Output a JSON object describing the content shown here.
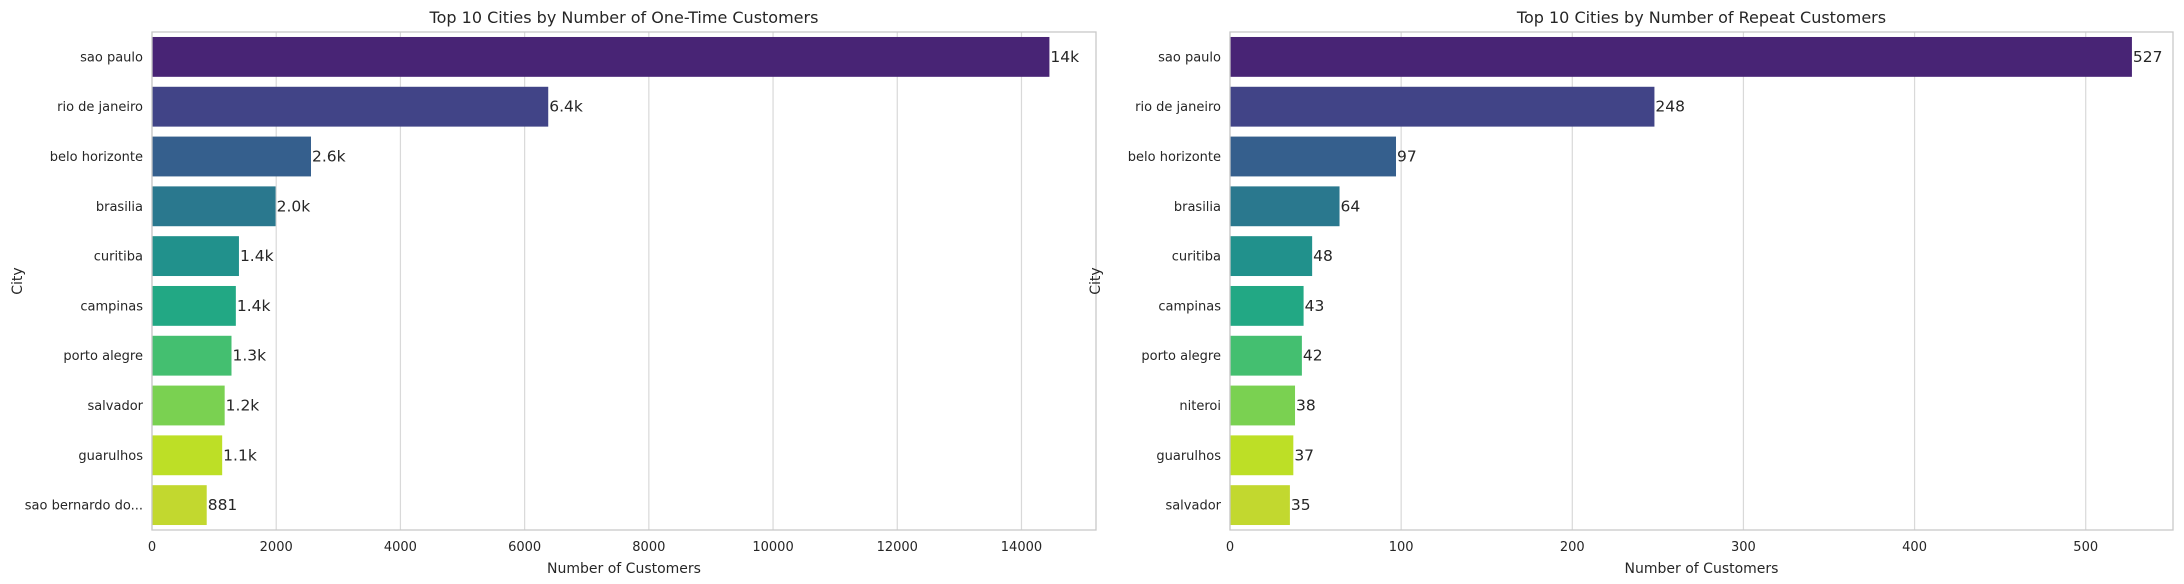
{
  "chart_data": [
    {
      "type": "bar",
      "orientation": "horizontal",
      "title": "Top 10 Cities by Number of One-Time Customers",
      "xlabel": "Number of Customers",
      "ylabel": "City",
      "xlim": [
        0,
        15200
      ],
      "xticks": [
        0,
        2000,
        4000,
        6000,
        8000,
        10000,
        12000,
        14000
      ],
      "grid": "x",
      "categories": [
        "sao paulo",
        "rio de janeiro",
        "belo horizonte",
        "brasilia",
        "curitiba",
        "campinas",
        "porto alegre",
        "salvador",
        "guarulhos",
        "sao bernardo do..."
      ],
      "values": [
        14450,
        6380,
        2560,
        1990,
        1400,
        1350,
        1280,
        1170,
        1130,
        881
      ],
      "data_labels": [
        "14k",
        "6.4k",
        "2.6k",
        "2.0k",
        "1.4k",
        "1.4k",
        "1.3k",
        "1.2k",
        "1.1k",
        "881"
      ],
      "colors": [
        "#482475",
        "#414487",
        "#355f8d",
        "#2a788e",
        "#21918c",
        "#22a884",
        "#44bf70",
        "#7ad151",
        "#bddf26",
        "#c2d82f"
      ]
    },
    {
      "type": "bar",
      "orientation": "horizontal",
      "title": "Top 10 Cities by Number of Repeat Customers",
      "xlabel": "Number of Customers",
      "ylabel": "City",
      "xlim": [
        0,
        551
      ],
      "xticks": [
        0,
        100,
        200,
        300,
        400,
        500
      ],
      "grid": "x",
      "categories": [
        "sao paulo",
        "rio de janeiro",
        "belo horizonte",
        "brasilia",
        "curitiba",
        "campinas",
        "porto alegre",
        "niteroi",
        "guarulhos",
        "salvador"
      ],
      "values": [
        527,
        248,
        97,
        64,
        48,
        43,
        42,
        38,
        37,
        35
      ],
      "data_labels": [
        "527",
        "248",
        "97",
        "64",
        "48",
        "43",
        "42",
        "38",
        "37",
        "35"
      ],
      "colors": [
        "#482475",
        "#414487",
        "#355f8d",
        "#2a788e",
        "#21918c",
        "#22a884",
        "#44bf70",
        "#7ad151",
        "#bddf26",
        "#c2d82f"
      ]
    }
  ]
}
